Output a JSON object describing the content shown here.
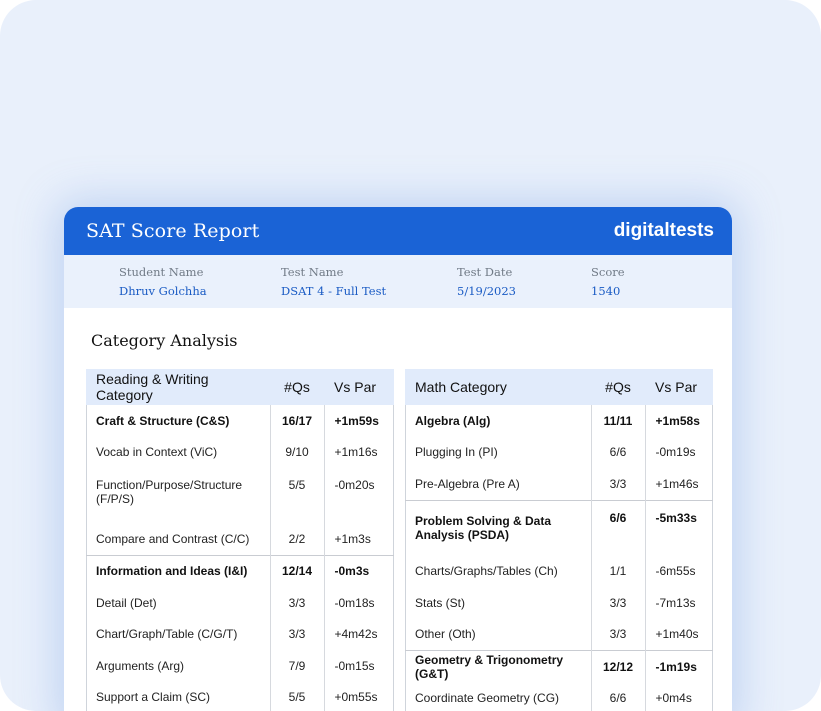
{
  "report": {
    "title": "SAT Score Report",
    "brand": "digitaltests"
  },
  "student": {
    "name_label": "Student Name",
    "name": "Dhruv Golchha",
    "test_label": "Test Name",
    "test": "DSAT 4 - Full Test",
    "date_label": "Test Date",
    "date": "5/19/2023",
    "score_label": "Score",
    "score": "1540"
  },
  "section_title": "Category Analysis",
  "rw_table": {
    "headers": [
      "Reading & Writing Category",
      "#Qs",
      "Vs Par"
    ],
    "rows": [
      [
        "Craft & Structure (C&S)",
        "16/17",
        "+1m59s"
      ],
      [
        "Vocab in Context (ViC)",
        "9/10",
        "+1m16s"
      ],
      [
        "Function/Purpose/Structure (F/P/S)",
        "5/5",
        "-0m20s"
      ],
      [
        "Compare and Contrast (C/C)",
        "2/2",
        "+1m3s"
      ],
      [
        "Information and Ideas (I&I)",
        "12/14",
        "-0m3s"
      ],
      [
        "Detail (Det)",
        "3/3",
        "-0m18s"
      ],
      [
        "Chart/Graph/Table (C/G/T)",
        "3/3",
        "+4m42s"
      ],
      [
        "Arguments (Arg)",
        "7/9",
        "-0m15s"
      ],
      [
        "Support a Claim (SC)",
        "5/5",
        "+0m55s"
      ]
    ]
  },
  "math_table": {
    "headers": [
      "Math Category",
      "#Qs",
      "Vs Par"
    ],
    "rows": [
      [
        "Algebra (Alg)",
        "11/11",
        "+1m58s"
      ],
      [
        "Plugging In (PI)",
        "6/6",
        "-0m19s"
      ],
      [
        "Pre-Algebra (Pre A)",
        "3/3",
        "+1m46s"
      ],
      [
        "Problem Solving & Data Analysis (PSDA)",
        "6/6",
        "-5m33s"
      ],
      [
        "Charts/Graphs/Tables (Ch)",
        "1/1",
        "-6m55s"
      ],
      [
        "Stats (St)",
        "3/3",
        "-7m13s"
      ],
      [
        "Other (Oth)",
        "3/3",
        "+1m40s"
      ],
      [
        "Geometry & Trigonometry (G&T)",
        "12/12",
        "-1m19s"
      ],
      [
        "Coordinate Geometry (CG)",
        "6/6",
        "+0m4s"
      ]
    ]
  }
}
